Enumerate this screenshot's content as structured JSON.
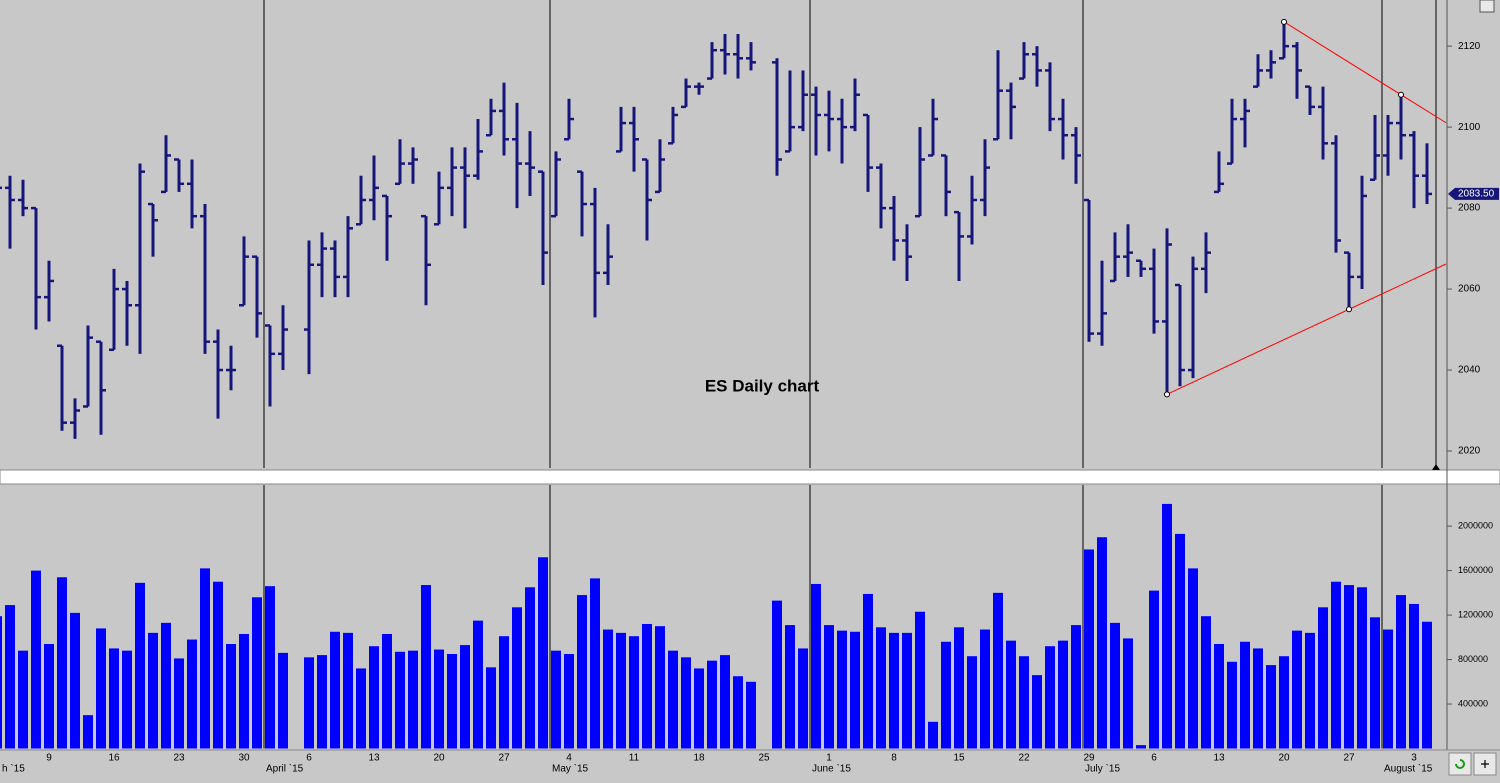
{
  "chart_data": [
    {
      "type": "ohlc",
      "annotation": "ES Daily chart",
      "color": "#16167a",
      "open": [
        2090,
        2085,
        2082,
        2080,
        2058,
        2046,
        2027,
        2031,
        2047,
        2045,
        2060,
        2056,
        2081,
        2084,
        2092,
        2086,
        2078,
        2047,
        2040,
        2056,
        2068,
        2051,
        2044,
        null,
        2050,
        2066,
        2070,
        2063,
        2076,
        2082,
        2083,
        2086,
        2091,
        2078,
        2076,
        2085,
        2090,
        2088,
        2098,
        2104,
        2097,
        2091,
        2089,
        2078,
        2097,
        2089,
        2081,
        2064,
        2094,
        2101,
        2092,
        2084,
        2096,
        2105,
        2110,
        2112,
        2119,
        2118,
        2117,
        null,
        2116,
        2094,
        2100,
        2108,
        2103,
        2102,
        2100,
        2103,
        2090,
        2080,
        2072,
        2078,
        2093,
        2093,
        2079,
        2073,
        2082,
        2097,
        2109,
        2112,
        2118,
        2114,
        2102,
        2098,
        2082,
        2049,
        2062,
        2068,
        2067,
        2065,
        2052,
        2061,
        2040,
        2065,
        2084,
        2091,
        2102,
        2110,
        2114,
        2117,
        2120,
        2110,
        2105,
        2096,
        2069,
        2063,
        2087,
        2093,
        2101,
        2098,
        2088
      ],
      "high": [
        2094,
        2088,
        2087,
        2080,
        2067,
        2046,
        2033,
        2051,
        2047,
        2065,
        2062,
        2091,
        2081,
        2098,
        2092,
        2092,
        2081,
        2050,
        2046,
        2073,
        2068,
        2051,
        2056,
        null,
        2072,
        2074,
        2072,
        2078,
        2088,
        2093,
        2083,
        2097,
        2095,
        2078,
        2089,
        2095,
        2095,
        2102,
        2107,
        2111,
        2106,
        2099,
        2089,
        2094,
        2107,
        2089,
        2085,
        2076,
        2105,
        2105,
        2092,
        2097,
        2105,
        2112,
        2111,
        2121,
        2123,
        2123,
        2121,
        null,
        2117,
        2114,
        2114,
        2110,
        2109,
        2107,
        2112,
        2103,
        2091,
        2083,
        2076,
        2100,
        2107,
        2093,
        2079,
        2088,
        2097,
        2119,
        2111,
        2121,
        2120,
        2116,
        2107,
        2100,
        2082,
        2067,
        2074,
        2076,
        2067,
        2070,
        2075,
        2061,
        2068,
        2074,
        2094,
        2107,
        2107,
        2118,
        2119,
        2126,
        2121,
        2110,
        2110,
        2098,
        2069,
        2088,
        2103,
        2103,
        2108,
        2099,
        2096
      ],
      "low": [
        2082,
        2070,
        2078,
        2050,
        2052,
        2025,
        2023,
        2031,
        2024,
        2045,
        2046,
        2044,
        2068,
        2084,
        2084,
        2075,
        2044,
        2028,
        2035,
        2056,
        2048,
        2031,
        2040,
        null,
        2039,
        2058,
        2058,
        2058,
        2076,
        2077,
        2067,
        2086,
        2086,
        2056,
        2076,
        2078,
        2075,
        2087,
        2098,
        2093,
        2080,
        2083,
        2061,
        2078,
        2097,
        2073,
        2053,
        2061,
        2094,
        2089,
        2072,
        2084,
        2096,
        2105,
        2108,
        2112,
        2113,
        2112,
        2114,
        null,
        2088,
        2094,
        2099,
        2093,
        2094,
        2091,
        2099,
        2084,
        2075,
        2067,
        2062,
        2078,
        2093,
        2078,
        2062,
        2071,
        2078,
        2097,
        2097,
        2112,
        2110,
        2099,
        2092,
        2086,
        2047,
        2046,
        2062,
        2063,
        2063,
        2049,
        2034,
        2036,
        2038,
        2059,
        2084,
        2091,
        2095,
        2110,
        2112,
        2117,
        2107,
        2103,
        2092,
        2069,
        2055,
        2060,
        2087,
        2088,
        2092,
        2080,
        2081
      ],
      "close": [
        2085,
        2082,
        2080,
        2058,
        2062,
        2027,
        2030,
        2048,
        2035,
        2060,
        2056,
        2089,
        2077,
        2093,
        2086,
        2078,
        2047,
        2040,
        2040,
        2068,
        2054,
        2044,
        2050,
        null,
        2066,
        2070,
        2063,
        2075,
        2082,
        2085,
        2078,
        2091,
        2092,
        2066,
        2085,
        2090,
        2088,
        2094,
        2104,
        2097,
        2091,
        2090,
        2069,
        2092,
        2102,
        2081,
        2064,
        2068,
        2101,
        2097,
        2082,
        2092,
        2103,
        2110,
        2110,
        2119,
        2118,
        2117,
        2116,
        null,
        2092,
        2100,
        2108,
        2103,
        2102,
        2100,
        2108,
        2090,
        2080,
        2072,
        2068,
        2092,
        2102,
        2084,
        2073,
        2082,
        2090,
        2109,
        2105,
        2118,
        2114,
        2102,
        2098,
        2093,
        2049,
        2054,
        2068,
        2069,
        2065,
        2052,
        2071,
        2040,
        2065,
        2069,
        2086,
        2102,
        2104,
        2114,
        2116,
        2120,
        2114,
        2105,
        2096,
        2072,
        2063,
        2083,
        2093,
        2101,
        2098,
        2088,
        2083.5
      ],
      "last_price_label": "2083.50",
      "trendlines": [
        {
          "color": "#ff0000",
          "x": [
            90,
            104
          ],
          "y": [
            2034,
            2055
          ]
        },
        {
          "color": "#ff0000",
          "x": [
            99,
            108
          ],
          "y": [
            2126,
            2108
          ]
        }
      ],
      "ylim": [
        2015.8,
        2131.4
      ],
      "yticks": [
        2020,
        2040,
        2060,
        2080,
        2100,
        2120
      ]
    },
    {
      "type": "bar",
      "color": "#0000ff",
      "categories": [
        null,
        null,
        null,
        null,
        "9",
        null,
        null,
        null,
        null,
        "16",
        null,
        null,
        null,
        null,
        "23",
        null,
        null,
        null,
        null,
        "30",
        null,
        null,
        null,
        null,
        "6",
        null,
        null,
        null,
        null,
        "13",
        null,
        null,
        null,
        null,
        "20",
        null,
        null,
        null,
        null,
        "27",
        null,
        null,
        null,
        null,
        "4",
        null,
        null,
        null,
        null,
        "11",
        null,
        null,
        null,
        null,
        "18",
        null,
        null,
        null,
        null,
        "25",
        null,
        null,
        null,
        null,
        "1",
        null,
        null,
        null,
        null,
        "8",
        null,
        null,
        null,
        null,
        "15",
        null,
        null,
        null,
        null,
        "22",
        null,
        null,
        null,
        null,
        "29",
        null,
        null,
        null,
        null,
        "6",
        null,
        null,
        null,
        null,
        "13",
        null,
        null,
        null,
        null,
        "20",
        null,
        null,
        null,
        null,
        "27",
        null,
        null,
        null,
        null,
        "3",
        null
      ],
      "month_labels": [
        "h `15",
        null,
        null,
        null,
        null,
        null,
        null,
        null,
        null,
        null,
        null,
        null,
        null,
        null,
        null,
        null,
        null,
        null,
        null,
        null,
        null,
        "April `15",
        null,
        null,
        null,
        null,
        null,
        null,
        null,
        null,
        null,
        null,
        null,
        null,
        null,
        null,
        null,
        null,
        null,
        null,
        null,
        null,
        null,
        "May `15",
        null,
        null,
        null,
        null,
        null,
        null,
        null,
        null,
        null,
        null,
        null,
        null,
        null,
        null,
        null,
        null,
        null,
        null,
        null,
        "June `15",
        null,
        null,
        null,
        null,
        null,
        null,
        null,
        null,
        null,
        null,
        null,
        null,
        null,
        null,
        null,
        null,
        null,
        null,
        null,
        null,
        "July `15",
        null,
        null,
        null,
        null,
        null,
        null,
        null,
        null,
        null,
        null,
        null,
        null,
        null,
        null,
        null,
        null,
        null,
        null,
        null,
        null,
        null,
        null,
        "August `15",
        null
      ],
      "values": [
        1190000,
        1290000,
        880000,
        1600000,
        940000,
        1540000,
        1220000,
        300000,
        1080000,
        900000,
        880000,
        1490000,
        1040000,
        1130000,
        810000,
        980000,
        1620000,
        1500000,
        940000,
        1030000,
        1360000,
        1460000,
        860000,
        null,
        820000,
        840000,
        1050000,
        1040000,
        720000,
        920000,
        1030000,
        870000,
        880000,
        1470000,
        890000,
        850000,
        930000,
        1150000,
        730000,
        1010000,
        1270000,
        1450000,
        1720000,
        880000,
        850000,
        1380000,
        1530000,
        1070000,
        1040000,
        1010000,
        1120000,
        1100000,
        880000,
        820000,
        720000,
        790000,
        840000,
        650000,
        600000,
        null,
        1330000,
        1110000,
        900000,
        1480000,
        1110000,
        1060000,
        1050000,
        1390000,
        1090000,
        1040000,
        1040000,
        1230000,
        240000,
        960000,
        1090000,
        830000,
        1070000,
        1400000,
        970000,
        830000,
        660000,
        920000,
        970000,
        1110000,
        1790000,
        1900000,
        1130000,
        990000,
        30000,
        1420000,
        2200000,
        1930000,
        1620000,
        1190000,
        940000,
        780000,
        960000,
        900000,
        750000,
        830000,
        1060000,
        1040000,
        1270000,
        1500000,
        1470000,
        1450000,
        1180000,
        1070000,
        1380000,
        1300000,
        1140000
      ],
      "ylim": [
        0,
        2370000
      ],
      "yticks": [
        400000,
        800000,
        1200000,
        1600000,
        2000000
      ]
    }
  ]
}
